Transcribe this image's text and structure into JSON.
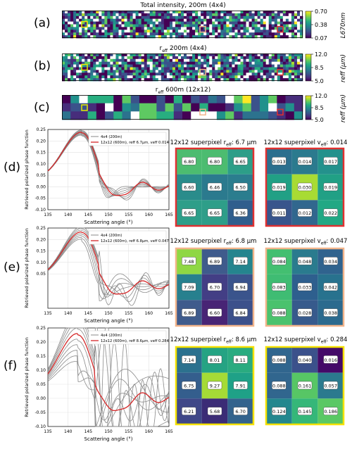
{
  "panel_labels": [
    "(a)",
    "(b)",
    "(c)",
    "(d)",
    "(e)",
    "(f)"
  ],
  "maps": [
    {
      "id": "a",
      "title": "Total intensity, 200m (4x4)",
      "cbar_ticks": [
        "0.70",
        "0.38",
        "0.07"
      ],
      "cbar_label": "L670nm",
      "cbar_colors": [
        "#fde725",
        "#21918c",
        "#440154"
      ]
    },
    {
      "id": "b",
      "title": "reff 200m (4x4)",
      "cbar_ticks": [
        "12.0",
        "8.5",
        "5.0"
      ],
      "cbar_label": "reff (μm)",
      "cbar_colors": [
        "#fde725",
        "#21918c",
        "#440154"
      ]
    },
    {
      "id": "c",
      "title": "reff 600m (12x12)",
      "cbar_ticks": [
        "12.0",
        "8.5",
        "5.0"
      ],
      "cbar_label": "reff (μm)",
      "cbar_colors": [
        "#fde725",
        "#21918c",
        "#440154"
      ]
    }
  ],
  "chart_data": [
    {
      "type": "line",
      "id": "d",
      "xlabel": "Scattering angle (°)",
      "ylabel": "Retrieved polarized phase function",
      "xlim": [
        135,
        165
      ],
      "ylim": [
        -0.1,
        0.25
      ],
      "xticks": [
        135,
        140,
        145,
        150,
        155,
        160,
        165
      ],
      "yticks": [
        -0.1,
        -0.05,
        0.0,
        0.05,
        0.1,
        0.15,
        0.2,
        0.25
      ],
      "legend": [
        "4x4 (200m)",
        "12x12 (600m), reff 6.7μm, veff 0.014"
      ],
      "peak": 143.5,
      "amp": 0.235,
      "spread": 0.008,
      "curves": 8
    },
    {
      "type": "line",
      "id": "e",
      "xlabel": "Scattering angle (°)",
      "ylabel": "Retrieved polarized phase function",
      "xlim": [
        135,
        165
      ],
      "ylim": [
        -0.1,
        0.25
      ],
      "xticks": [
        135,
        140,
        145,
        150,
        155,
        160,
        165
      ],
      "yticks": [
        0.05,
        0.1,
        0.15,
        0.2,
        0.25
      ],
      "legend": [
        "4x4 (200m)",
        "12x12 (600m), reff 6.8μm, veff 0.047"
      ],
      "peak": 143.5,
      "amp": 0.23,
      "spread": 0.02,
      "curves": 8
    },
    {
      "type": "line",
      "id": "f",
      "xlabel": "Scattering angle (°)",
      "ylabel": "Retrieved polarized phase function",
      "xlim": [
        135,
        165
      ],
      "ylim": [
        -0.1,
        0.25
      ],
      "xticks": [
        135,
        140,
        145,
        150,
        155,
        160,
        165
      ],
      "yticks": [
        -0.1,
        -0.05,
        0.0,
        0.05,
        0.1,
        0.15,
        0.2,
        0.25
      ],
      "legend": [
        "4x4 (200m)",
        "12x12 (600m), reff 8.6μm, veff 0.284"
      ],
      "peak": 142.5,
      "amp": 0.225,
      "spread": 0.05,
      "curves": 10
    },
    {
      "type": "heatmap",
      "id": "d-reff",
      "title_main": "12x12 superpixel r",
      "title_sub": "eff",
      "title_tail": ": 6.7 μm",
      "border": "#e03030",
      "values": [
        [
          "6.80",
          "6.80",
          "6.65"
        ],
        [
          "6.60",
          "6.46",
          "6.50"
        ],
        [
          "6.65",
          "6.65",
          "6.36"
        ]
      ],
      "colors": [
        [
          "#4cbc70",
          "#4cbc70",
          "#2d9e88"
        ],
        [
          "#2a8c8b",
          "#2b7a8e",
          "#2b7d8e"
        ],
        [
          "#2e9e89",
          "#2e9e89",
          "#305e8d"
        ]
      ]
    },
    {
      "type": "heatmap",
      "id": "d-veff",
      "title_main": "12x12 superpixel v",
      "title_sub": "eff",
      "title_tail": ": 0.014",
      "border": "#e03030",
      "values": [
        [
          "0.013",
          "0.014",
          "0.017"
        ],
        [
          "0.019",
          "0.030",
          "0.019"
        ],
        [
          "0.011",
          "0.012",
          "0.022"
        ]
      ],
      "colors": [
        [
          "#2b6f8e",
          "#2b7a8e",
          "#24918c"
        ],
        [
          "#21a085",
          "#a8db34",
          "#21a085"
        ],
        [
          "#38558c",
          "#31678e",
          "#22a884"
        ]
      ]
    },
    {
      "type": "heatmap",
      "id": "e-reff",
      "title_main": "12x12 superpixel r",
      "title_sub": "eff",
      "title_tail": ": 6.8 μm",
      "border": "#f2b48a",
      "values": [
        [
          "7.48",
          "6.89",
          "7.14"
        ],
        [
          "7.09",
          "6.70",
          "6.94"
        ],
        [
          "6.89",
          "6.60",
          "6.84"
        ]
      ],
      "colors": [
        [
          "#8fd744",
          "#3f5b8c",
          "#25858e"
        ],
        [
          "#27808e",
          "#433e85",
          "#3a548c"
        ],
        [
          "#3f5b8c",
          "#482475",
          "#3c508b"
        ]
      ]
    },
    {
      "type": "heatmap",
      "id": "e-veff",
      "title_main": "12x12 superpixel v",
      "title_sub": "eff",
      "title_tail": ": 0.047",
      "border": "#f2b48a",
      "values": [
        [
          "0.084",
          "0.048",
          "0.034"
        ],
        [
          "0.083",
          "0.033",
          "0.042"
        ],
        [
          "0.088",
          "0.028",
          "0.038"
        ]
      ],
      "colors": [
        [
          "#43bf71",
          "#2a7b8e",
          "#30638e"
        ],
        [
          "#3fbc73",
          "#2e5f8e",
          "#28728e"
        ],
        [
          "#4ac26d",
          "#375a8c",
          "#2c6a8e"
        ]
      ]
    },
    {
      "type": "heatmap",
      "id": "f-reff",
      "title_main": "12x12 superpixel r",
      "title_sub": "eff",
      "title_tail": ": 8.6 μm",
      "border": "#f5e100",
      "values": [
        [
          "7.14",
          "8.01",
          "8.11"
        ],
        [
          "6.75",
          "9.27",
          "7.91"
        ],
        [
          "6.21",
          "5.68",
          "6.70"
        ]
      ],
      "colors": [
        [
          "#2c718e",
          "#25a383",
          "#2aab80"
        ],
        [
          "#345e8d",
          "#a5db36",
          "#1fa187"
        ],
        [
          "#3f4788",
          "#3b2c76",
          "#33638d"
        ]
      ]
    },
    {
      "type": "heatmap",
      "id": "f-veff",
      "title_main": "12x12 superpixel v",
      "title_sub": "eff",
      "title_tail": ": 0.284",
      "border": "#f5e100",
      "values": [
        [
          "0.088",
          "0.040",
          "0.016"
        ],
        [
          "0.088",
          "0.161",
          "0.057"
        ],
        [
          "0.124",
          "0.145",
          "0.186"
        ]
      ],
      "colors": [
        [
          "#31668e",
          "#3b518b",
          "#440a68"
        ],
        [
          "#31668e",
          "#57c665",
          "#2b7a8e"
        ],
        [
          "#24878e",
          "#35b779",
          "#5ac864"
        ]
      ]
    }
  ]
}
